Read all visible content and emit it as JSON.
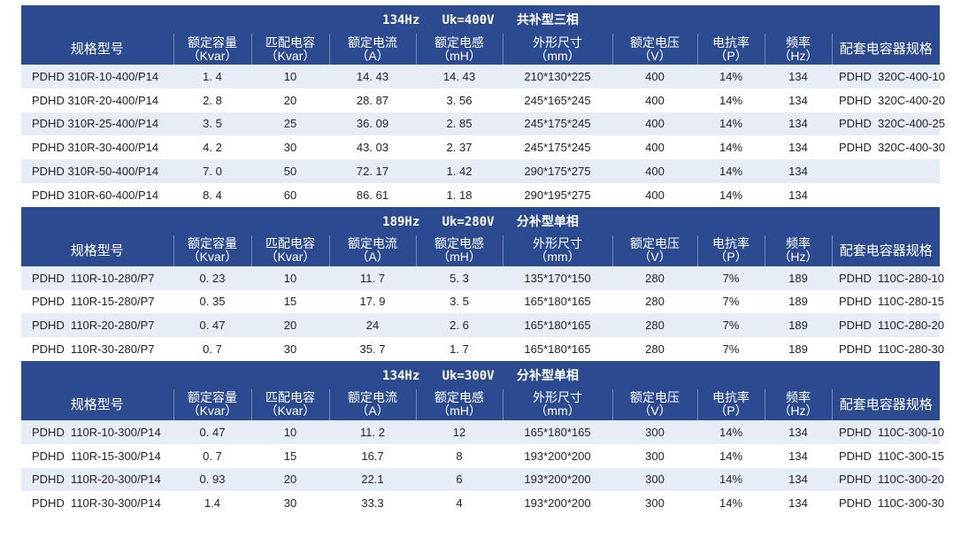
{
  "sections": [
    {
      "title": "134Hz   Uk=400V   共补型三相",
      "headers": [
        [
          "规格型号",
          ""
        ],
        [
          "额定容量",
          "（Kvar）"
        ],
        [
          "匹配电容",
          "（Kvar）"
        ],
        [
          "额定电流",
          "（A）"
        ],
        [
          "额定电感",
          "（mH）"
        ],
        [
          "外形尺寸",
          "（mm）"
        ],
        [
          "额定电压",
          "（V）"
        ],
        [
          "电抗率",
          "（P）"
        ],
        [
          "频率",
          "（Hz）"
        ],
        [
          "配套电容器规格",
          ""
        ]
      ],
      "rows": [
        [
          "PDHD 310R-10-400/P14",
          "1. 4",
          "10",
          "14. 43",
          "14. 43",
          "210*130*225",
          "400",
          "14%",
          "134",
          "PDHD  320C-400-10"
        ],
        [
          "PDHD 310R-20-400/P14",
          "2. 8",
          "20",
          "28. 87",
          "3. 56",
          "245*165*245",
          "400",
          "14%",
          "134",
          "PDHD  320C-400-20"
        ],
        [
          "PDHD 310R-25-400/P14",
          "3. 5",
          "25",
          "36. 09",
          "2. 85",
          "245*175*245",
          "400",
          "14%",
          "134",
          "PDHD  320C-400-25"
        ],
        [
          "PDHD 310R-30-400/P14",
          "4. 2",
          "30",
          "43. 03",
          "2. 37",
          "245*175*245",
          "400",
          "14%",
          "134",
          "PDHD  320C-400-30"
        ],
        [
          "PDHD 310R-50-400/P14",
          "7. 0",
          "50",
          "72. 17",
          "1. 42",
          "290*175*275",
          "400",
          "14%",
          "134",
          ""
        ],
        [
          "PDHD 310R-60-400/P14",
          "8. 4",
          "60",
          "86. 61",
          "1. 18",
          "290*195*275",
          "400",
          "14%",
          "134",
          ""
        ]
      ]
    },
    {
      "title": "189Hz   Uk=280V   分补型单相",
      "headers": [
        [
          "规格型号",
          ""
        ],
        [
          "额定容量",
          "（Kvar）"
        ],
        [
          "匹配电容",
          "（Kvar）"
        ],
        [
          "额定电流",
          "（A）"
        ],
        [
          "额定电感",
          "（mH）"
        ],
        [
          "外形尺寸",
          "（mm）"
        ],
        [
          "额定电压",
          "（V）"
        ],
        [
          "电抗率",
          "（P）"
        ],
        [
          "频率",
          "（Hz）"
        ],
        [
          "配套电容器规格",
          ""
        ]
      ],
      "rows": [
        [
          "PDHD  110R-10-280/P7",
          "0. 23",
          "10",
          "11. 7",
          "5. 3",
          "135*170*150",
          "280",
          "7%",
          "189",
          "PDHD  110C-280-10"
        ],
        [
          "PDHD  110R-15-280/P7",
          "0. 35",
          "15",
          "17. 9",
          "3. 5",
          "165*180*165",
          "280",
          "7%",
          "189",
          "PDHD  110C-280-15"
        ],
        [
          "PDHD  110R-20-280/P7",
          "0. 47",
          "20",
          "24",
          "2. 6",
          "165*180*165",
          "280",
          "7%",
          "189",
          "PDHD  110C-280-20"
        ],
        [
          "PDHD  110R-30-280/P7",
          "0. 7",
          "30",
          "35. 7",
          "1. 7",
          "165*180*165",
          "280",
          "7%",
          "189",
          "PDHD  110C-280-30"
        ]
      ]
    },
    {
      "title": "134Hz   Uk=300V   分补型单相",
      "headers": [
        [
          "规格型号",
          ""
        ],
        [
          "额定容量",
          "（Kvar）"
        ],
        [
          "匹配电容",
          "（Kvar）"
        ],
        [
          "额定电流",
          "（A）"
        ],
        [
          "额定电感",
          "（mH）"
        ],
        [
          "外形尺寸",
          "（mm）"
        ],
        [
          "额定电压",
          "（V）"
        ],
        [
          "电抗率",
          "（P）"
        ],
        [
          "频率",
          "（Hz）"
        ],
        [
          "配套电容器规格",
          ""
        ]
      ],
      "rows": [
        [
          "PDHD  110R-10-300/P14",
          "0. 47",
          "10",
          "11. 2",
          "12",
          "165*180*165",
          "300",
          "14%",
          "134",
          "PDHD  110C-300-10"
        ],
        [
          "PDHD  110R-15-300/P14",
          "0. 7",
          "15",
          "16.7",
          "8",
          "193*200*200",
          "300",
          "14%",
          "134",
          "PDHD  110C-300-15"
        ],
        [
          "PDHD  110R-20-300/P14",
          "0. 93",
          "20",
          "22.1",
          "6",
          "193*200*200",
          "300",
          "14%",
          "134",
          "PDHD  110C-300-20"
        ],
        [
          "PDHD  110R-30-300/P14",
          "1.4",
          "30",
          "33.3",
          "4",
          "193*200*200",
          "300",
          "14%",
          "134",
          "PDHD  110C-300-30"
        ]
      ]
    }
  ],
  "colors": {
    "header_bg": "#2b4a8f",
    "row_alt_bg": "#e6edf6",
    "header_text": "#ffffff"
  }
}
